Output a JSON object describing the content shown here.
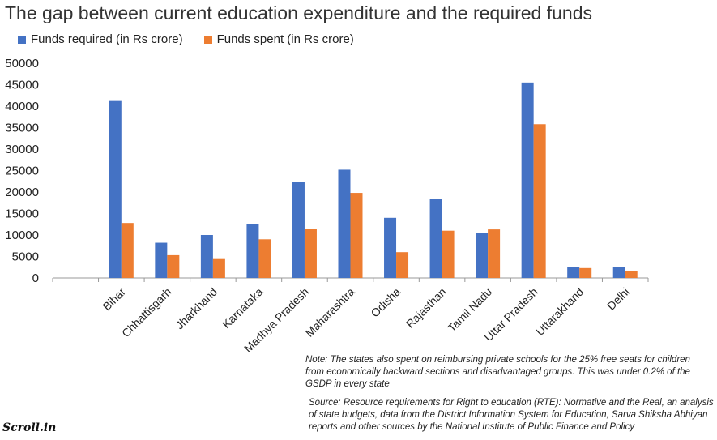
{
  "header": {
    "title": "The gap between current education expenditure and the required funds"
  },
  "colors": {
    "required": "#4472C4",
    "spent": "#ED7D31",
    "axis": "#999999"
  },
  "chart_data": {
    "type": "bar",
    "categories": [
      "Bihar",
      "Chhattisgarh",
      "Jharkhand",
      "Karnataka",
      "Madhya Pradesh",
      "Maharashtra",
      "Odisha",
      "Rajasthan",
      "Tamil Nadu",
      "Uttar Pradesh",
      "Uttarakhand",
      "Delhi"
    ],
    "series": [
      {
        "name": "Funds required (in Rs crore)",
        "values": [
          41200,
          8200,
          10000,
          12600,
          22300,
          25200,
          14000,
          18400,
          10400,
          45500,
          2500,
          2500
        ]
      },
      {
        "name": "Funds spent (in Rs crore)",
        "values": [
          12800,
          5300,
          4400,
          9000,
          11500,
          19800,
          6000,
          11000,
          11300,
          35800,
          2300,
          1700
        ]
      }
    ],
    "yticks": [
      0,
      5000,
      10000,
      15000,
      20000,
      25000,
      30000,
      35000,
      40000,
      45000,
      50000
    ],
    "ylim": [
      0,
      50000
    ],
    "legend_position": "top-left",
    "grid": false
  },
  "footer": {
    "note": "Note: The states also spent on reimbursing private schools for the 25% free seats for children from economically backward sections and disadvantaged groups. This was under 0.2%  of the GSDP in every state",
    "source": "Source: Resource requirements for Right to education (RTE): Normative and the Real, an analysis of state budgets, data from the District Information System for Education,  Sarva Shiksha Abhiyan reports and other sources by the National Institute of Public Finance and Policy",
    "logo": "Scroll.in"
  }
}
